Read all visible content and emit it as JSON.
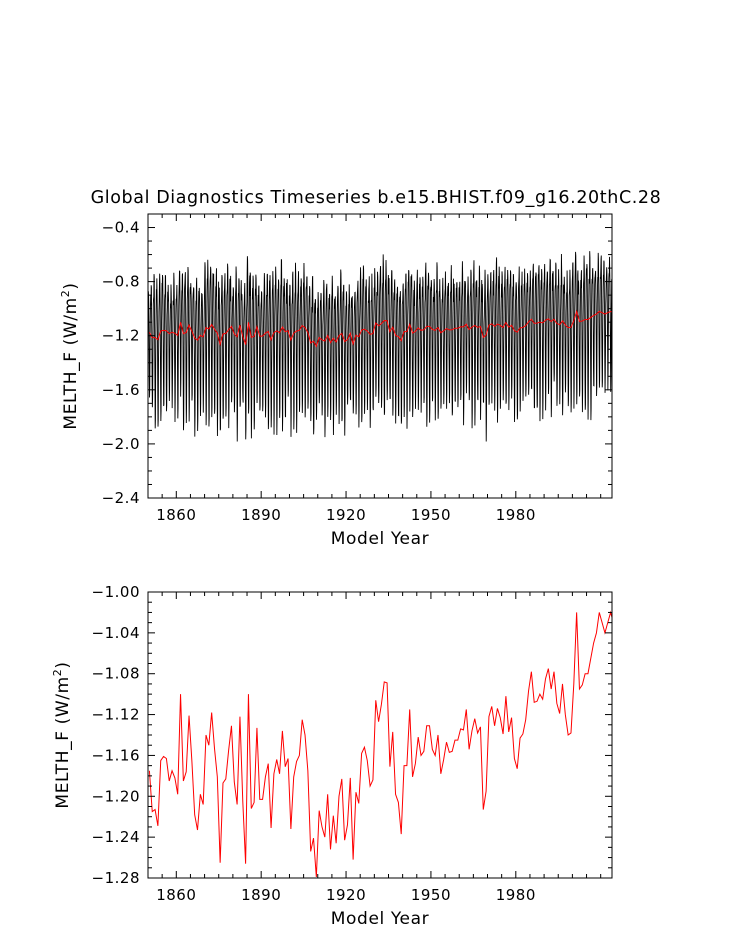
{
  "title": "Global Diagnostics Timeseries b.e15.BHIST.f09_g16.20thC.28",
  "colors": {
    "monthly": "#000000",
    "annual": "#ff0000",
    "axis": "#000000"
  },
  "chart_data": [
    {
      "type": "line",
      "name": "monthly-and-annual",
      "xlabel": "Model Year",
      "ylabel": "MELTH_F (W/m",
      "ylabel_sup": "2",
      "ylabel_close": ")",
      "xlim": [
        1850,
        2014
      ],
      "ylim": [
        -2.4,
        -0.3
      ],
      "xticks": [
        1860,
        1890,
        1920,
        1950,
        1980
      ],
      "xtick_labels": [
        "1860",
        "1890",
        "1920",
        "1950",
        "1980"
      ],
      "yticks": [
        -2.4,
        -2.0,
        -1.6,
        -1.2,
        -0.8,
        -0.4
      ],
      "ytick_labels": [
        "−2.4",
        "−2.0",
        "−1.6",
        "−1.2",
        "−0.8",
        "−0.4"
      ],
      "series": [
        {
          "name": "monthly",
          "color": "#000000",
          "seasonal_cycle": [
            -0.96,
            -0.84,
            -0.86,
            -1.04,
            -1.3,
            -1.62,
            -1.86,
            -1.78,
            -1.46,
            -1.18,
            -1.02,
            -0.95
          ],
          "note": "monthly series = annual mean + seasonal cycle (approx.)"
        },
        {
          "name": "annual",
          "color": "#ff0000",
          "ref": "annual_values"
        }
      ]
    },
    {
      "type": "line",
      "name": "annual-mean",
      "xlabel": "Model Year",
      "ylabel": "MELTH_F (W/m",
      "ylabel_sup": "2",
      "ylabel_close": ")",
      "xlim": [
        1850,
        2014
      ],
      "ylim": [
        -1.28,
        -1.0
      ],
      "xticks": [
        1860,
        1890,
        1920,
        1950,
        1980
      ],
      "xtick_labels": [
        "1860",
        "1890",
        "1920",
        "1950",
        "1980"
      ],
      "yticks": [
        -1.28,
        -1.24,
        -1.2,
        -1.16,
        -1.12,
        -1.08,
        -1.04,
        -1.0
      ],
      "ytick_labels": [
        "−1.28",
        "−1.24",
        "−1.20",
        "−1.16",
        "−1.12",
        "−1.08",
        "−1.04",
        "−1.00"
      ],
      "series": [
        {
          "name": "annual",
          "color": "#ff0000",
          "ref": "annual_values"
        }
      ]
    }
  ],
  "annual_values": {
    "start_year": 1850,
    "values": [
      -1.175,
      -1.215,
      -1.213,
      -1.229,
      -1.165,
      -1.161,
      -1.163,
      -1.185,
      -1.175,
      -1.182,
      -1.198,
      -1.1,
      -1.185,
      -1.176,
      -1.121,
      -1.165,
      -1.218,
      -1.233,
      -1.198,
      -1.208,
      -1.14,
      -1.15,
      -1.118,
      -1.153,
      -1.181,
      -1.265,
      -1.187,
      -1.183,
      -1.155,
      -1.131,
      -1.186,
      -1.208,
      -1.122,
      -1.205,
      -1.266,
      -1.1,
      -1.212,
      -1.206,
      -1.133,
      -1.203,
      -1.203,
      -1.181,
      -1.168,
      -1.231,
      -1.178,
      -1.164,
      -1.178,
      -1.136,
      -1.171,
      -1.163,
      -1.232,
      -1.181,
      -1.166,
      -1.16,
      -1.125,
      -1.14,
      -1.175,
      -1.254,
      -1.241,
      -1.279,
      -1.214,
      -1.23,
      -1.24,
      -1.198,
      -1.252,
      -1.219,
      -1.246,
      -1.2,
      -1.183,
      -1.243,
      -1.228,
      -1.182,
      -1.262,
      -1.196,
      -1.207,
      -1.158,
      -1.152,
      -1.165,
      -1.19,
      -1.184,
      -1.106,
      -1.127,
      -1.11,
      -1.088,
      -1.089,
      -1.171,
      -1.137,
      -1.198,
      -1.206,
      -1.237,
      -1.17,
      -1.17,
      -1.115,
      -1.181,
      -1.168,
      -1.142,
      -1.16,
      -1.156,
      -1.131,
      -1.131,
      -1.154,
      -1.16,
      -1.14,
      -1.178,
      -1.164,
      -1.147,
      -1.157,
      -1.156,
      -1.145,
      -1.145,
      -1.134,
      -1.135,
      -1.115,
      -1.154,
      -1.136,
      -1.124,
      -1.138,
      -1.132,
      -1.213,
      -1.195,
      -1.122,
      -1.112,
      -1.131,
      -1.114,
      -1.123,
      -1.139,
      -1.102,
      -1.137,
      -1.123,
      -1.163,
      -1.173,
      -1.143,
      -1.139,
      -1.125,
      -1.097,
      -1.078,
      -1.108,
      -1.107,
      -1.1,
      -1.105,
      -1.085,
      -1.075,
      -1.095,
      -1.078,
      -1.109,
      -1.119,
      -1.09,
      -1.12,
      -1.14,
      -1.138,
      -1.09,
      -1.02,
      -1.095,
      -1.091,
      -1.08,
      -1.08,
      -1.065,
      -1.05,
      -1.04,
      -1.02,
      -1.03,
      -1.04,
      -1.03,
      -1.02,
      -1.03,
      -1.025,
      -1.035,
      -1.04,
      -1.045,
      -1.05,
      -1.04,
      -1.03,
      -1.02,
      -1.025,
      -1.03,
      -1.022
    ]
  }
}
